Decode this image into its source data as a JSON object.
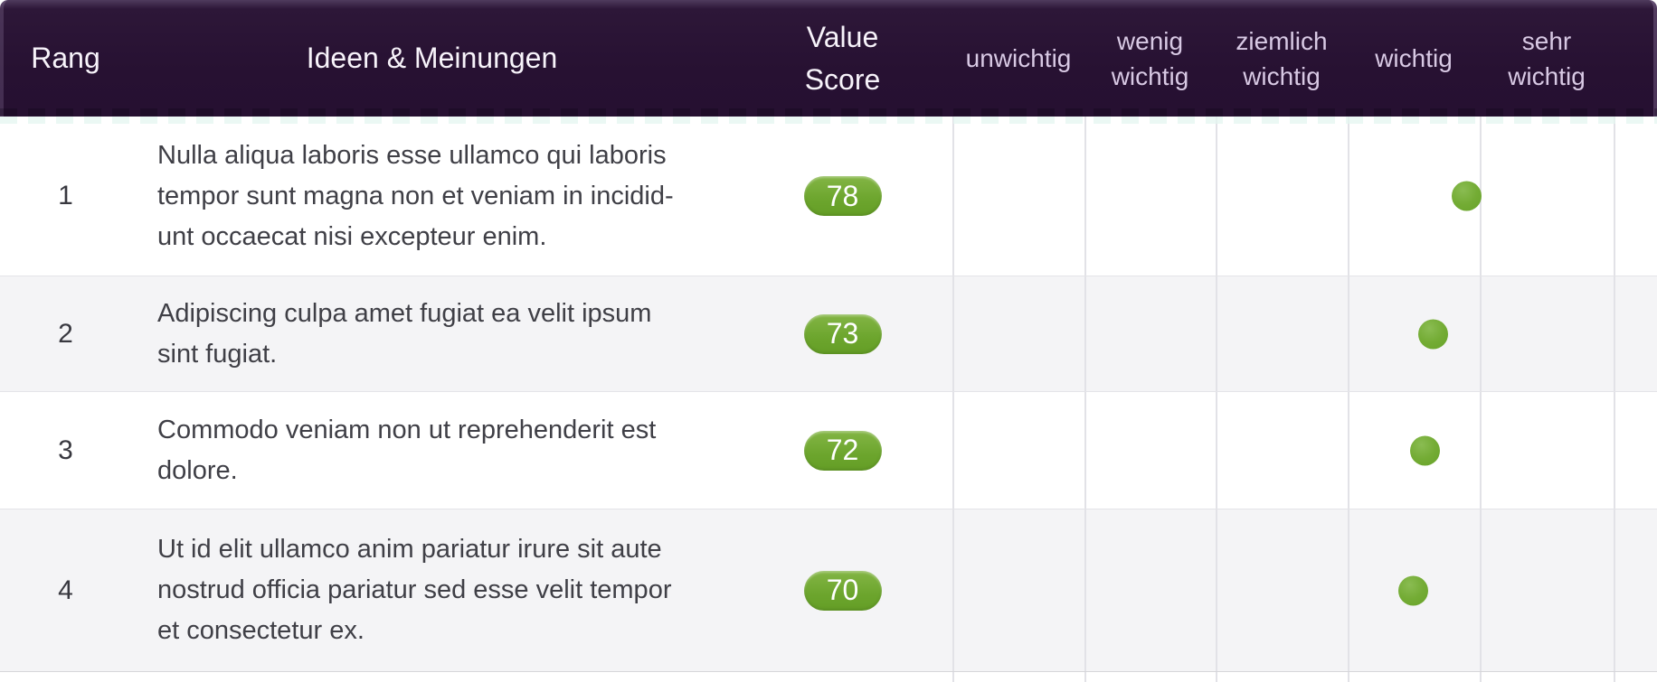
{
  "header": {
    "rang": "Rang",
    "ideen": "Ideen & Meinungen",
    "value_score": "Value\nScore",
    "rating_scale": [
      "unwichtig",
      "wenig\nwichtig",
      "ziemlich\nwichtig",
      "wichtig",
      "sehr\nwichtig"
    ]
  },
  "rows": [
    {
      "rank": "1",
      "idea": "Nulla aliqua laboris esse ullamco qui laboris\ntempor sunt magna non et veniam in incidid-\nunt occaecat nisi excepteur enim.",
      "value_score": "78",
      "rating": "wichtig"
    },
    {
      "rank": "2",
      "idea": "Adipiscing culpa amet fugiat ea velit ipsum\nsint fugiat.",
      "value_score": "73",
      "rating": "wichtig"
    },
    {
      "rank": "3",
      "idea": "Commodo veniam non ut reprehenderit est\ndolore.",
      "value_score": "72",
      "rating": "wichtig"
    },
    {
      "rank": "4",
      "idea": "Ut id elit ullamco anim pariatur irure sit aute\nnostrud officia pariatur sed esse velit tempor\net consectetur ex.",
      "value_score": "70",
      "rating": "wichtig"
    }
  ],
  "colors": {
    "header_bg": "#271132",
    "header_text": "#f7f3fa",
    "rating_label_text": "#d8c9e4",
    "pill_green": "#6ca52d",
    "dot_green": "#74ac35",
    "row_alt_bg": "#f4f4f6",
    "grid_line": "#e2e2e7",
    "body_text": "#3f3f46"
  }
}
